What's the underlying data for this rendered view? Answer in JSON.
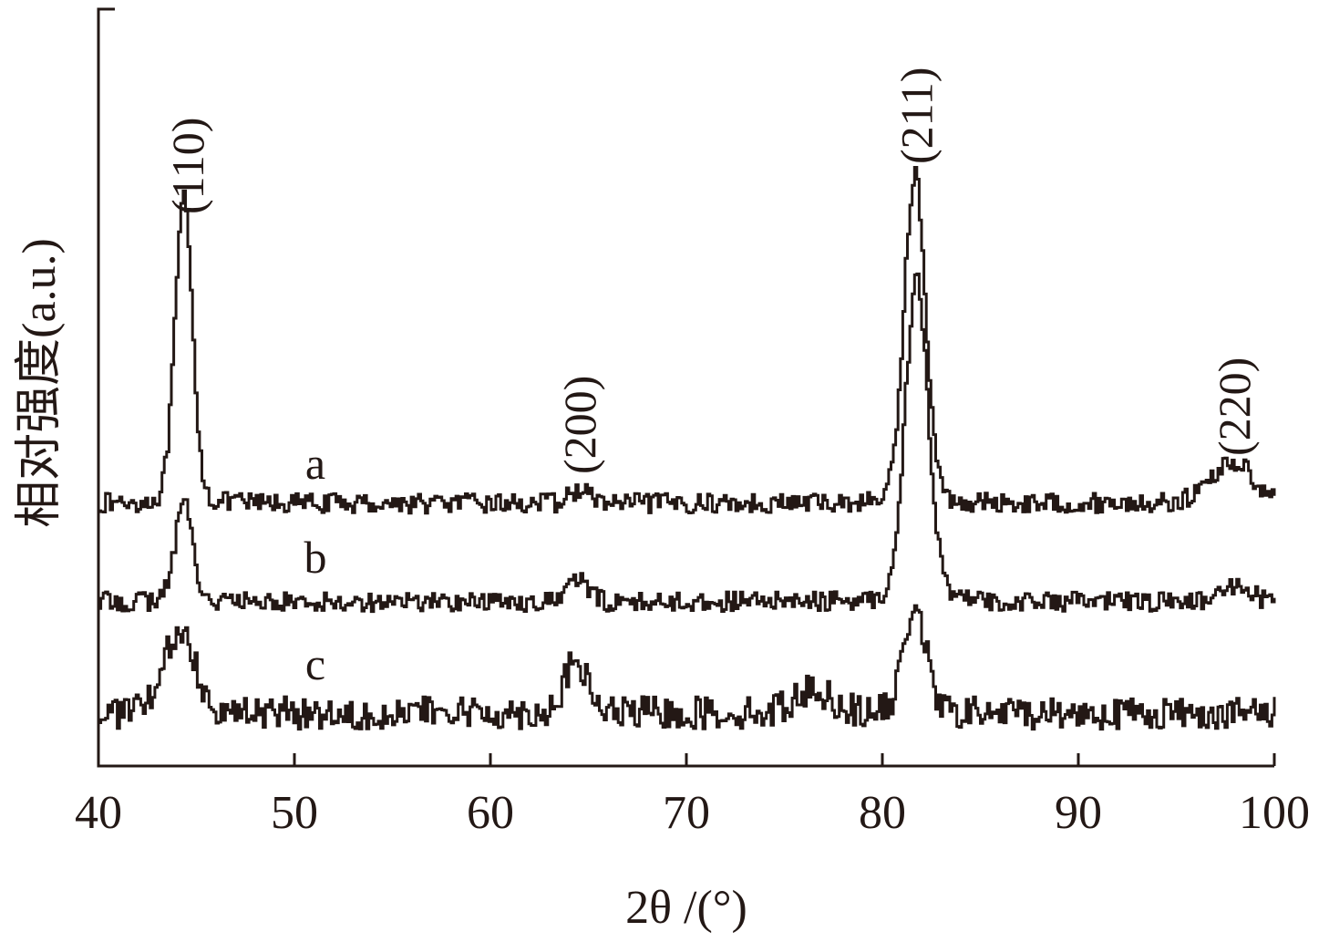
{
  "chart_data": {
    "type": "line",
    "title": "",
    "xlabel": "2θ /(°)",
    "ylabel": "相对强度(a.u.)",
    "xlim": [
      40,
      100
    ],
    "xticks": [
      40,
      50,
      60,
      70,
      80,
      90,
      100
    ],
    "y_units": "a.u.",
    "grid": false,
    "legend": "none",
    "peak_labels": [
      {
        "text": "(110)",
        "x": 44.6
      },
      {
        "text": "(200)",
        "x": 64.6
      },
      {
        "text": "(211)",
        "x": 81.8
      },
      {
        "text": "(220)",
        "x": 98.0
      }
    ],
    "series": [
      {
        "name": "a",
        "baseline": 0.0,
        "noise": 0.12,
        "peaks": [
          {
            "x": 44.3,
            "height": 3.3,
            "width": 0.45
          },
          {
            "x": 64.5,
            "height": 0.15,
            "width": 0.5
          },
          {
            "x": 81.6,
            "height": 3.6,
            "width": 0.55
          },
          {
            "x": 97.8,
            "height": 0.45,
            "width": 1.1
          }
        ]
      },
      {
        "name": "b",
        "baseline": 0.0,
        "noise": 0.12,
        "peaks": [
          {
            "x": 44.3,
            "height": 1.1,
            "width": 0.45
          },
          {
            "x": 64.4,
            "height": 0.25,
            "width": 0.5
          },
          {
            "x": 81.7,
            "height": 3.5,
            "width": 0.6
          },
          {
            "x": 98.0,
            "height": 0.15,
            "width": 0.8
          }
        ]
      },
      {
        "name": "c",
        "baseline": 0.0,
        "noise": 0.2,
        "peaks": [
          {
            "x": 44.1,
            "height": 0.9,
            "width": 0.8
          },
          {
            "x": 64.3,
            "height": 0.55,
            "width": 0.6
          },
          {
            "x": 76.4,
            "height": 0.25,
            "width": 1.0
          },
          {
            "x": 81.6,
            "height": 1.2,
            "width": 0.55
          }
        ]
      }
    ]
  }
}
